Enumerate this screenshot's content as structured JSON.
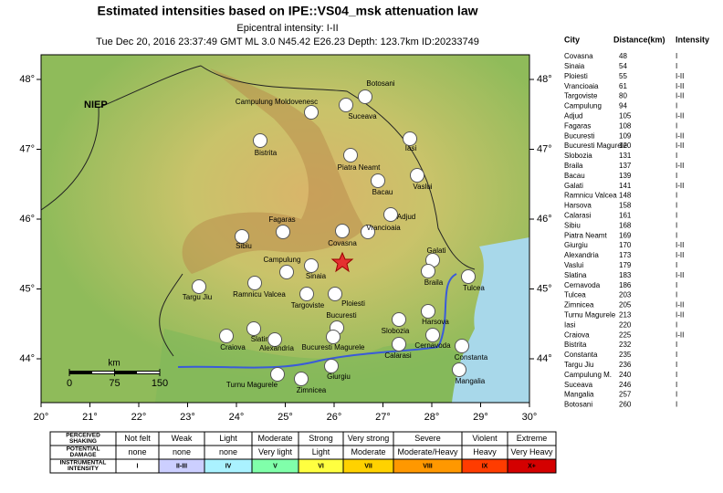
{
  "header": {
    "title": "Estimated intensities based on IPE::VS04_msk attenuation law",
    "epicentral": "Epicentral intensity: I-II",
    "details": "Tue Dec 20, 2016 23:37:49 GMT ML 3.0 N45.42 E26.23 Depth: 123.7km ID:20233749"
  },
  "map": {
    "label": "NIEP",
    "lon_ticks": [
      {
        "value": 20,
        "label": "20°"
      },
      {
        "value": 21,
        "label": "21°"
      },
      {
        "value": 22,
        "label": "22°"
      },
      {
        "value": 23,
        "label": "23°"
      },
      {
        "value": 24,
        "label": "24°"
      },
      {
        "value": 25,
        "label": "25°"
      },
      {
        "value": 26,
        "label": "26°"
      },
      {
        "value": 27,
        "label": "27°"
      },
      {
        "value": 28,
        "label": "28°"
      },
      {
        "value": 29,
        "label": "29°"
      },
      {
        "value": 30,
        "label": "30°"
      }
    ],
    "lat_ticks": [
      {
        "value": 44,
        "label": "44°"
      },
      {
        "value": 45,
        "label": "45°"
      },
      {
        "value": 46,
        "label": "46°"
      },
      {
        "value": 47,
        "label": "47°"
      },
      {
        "value": 48,
        "label": "48°"
      }
    ],
    "scale": {
      "unit": "km",
      "ticks": [
        0,
        75,
        150
      ]
    },
    "cities": [
      "Campulung Moldovenesc",
      "Suceava",
      "Botosani",
      "Iasi",
      "Bistrita",
      "Piatra Neamt",
      "Bacau",
      "Vaslui",
      "Adjud",
      "Fagaras",
      "Covasna",
      "Vrancioaia",
      "Sibiu",
      "Campulung",
      "Sinaia",
      "Galati",
      "Braila",
      "Tulcea",
      "Targu Jiu",
      "Ramnicu Valcea",
      "Targoviste",
      "Ploiesti",
      "Bucuresti",
      "Slobozia",
      "Harsova",
      "Slatina",
      "Craiova",
      "Alexandria",
      "Bucuresti Magurele",
      "Calarasi",
      "Cernavoda",
      "Constanta",
      "Turnu Magurele",
      "Zimnicea",
      "Giurgiu",
      "Mangalia"
    ]
  },
  "table": {
    "columns": [
      "City",
      "Distance(km)",
      "Intensity"
    ],
    "rows": [
      [
        "Covasna",
        48,
        "I"
      ],
      [
        "Sinaia",
        54,
        "I"
      ],
      [
        "Ploiesti",
        55,
        "I-II"
      ],
      [
        "Vrancioaia",
        61,
        "I-II"
      ],
      [
        "Targoviste",
        80,
        "I-II"
      ],
      [
        "Campulung",
        94,
        "I"
      ],
      [
        "Adjud",
        105,
        "I-II"
      ],
      [
        "Fagaras",
        108,
        "I"
      ],
      [
        "Bucuresti",
        109,
        "I-II"
      ],
      [
        "Bucuresti Magurele",
        120,
        "I-II"
      ],
      [
        "Slobozia",
        131,
        "I"
      ],
      [
        "Braila",
        137,
        "I-II"
      ],
      [
        "Bacau",
        139,
        "I"
      ],
      [
        "Galati",
        141,
        "I-II"
      ],
      [
        "Ramnicu Valcea",
        148,
        "I"
      ],
      [
        "Harsova",
        158,
        "I"
      ],
      [
        "Calarasi",
        161,
        "I"
      ],
      [
        "Sibiu",
        168,
        "I"
      ],
      [
        "Piatra Neamt",
        169,
        "I"
      ],
      [
        "Giurgiu",
        170,
        "I-II"
      ],
      [
        "Alexandria",
        173,
        "I-II"
      ],
      [
        "Vaslui",
        179,
        "I"
      ],
      [
        "Slatina",
        183,
        "I-II"
      ],
      [
        "Cernavoda",
        186,
        "I"
      ],
      [
        "Tulcea",
        203,
        "I"
      ],
      [
        "Zimnicea",
        205,
        "I-II"
      ],
      [
        "Turnu Magurele",
        213,
        "I-II"
      ],
      [
        "Iasi",
        220,
        "I"
      ],
      [
        "Craiova",
        225,
        "I-II"
      ],
      [
        "Bistrita",
        232,
        "I"
      ],
      [
        "Constanta",
        235,
        "I"
      ],
      [
        "Targu Jiu",
        236,
        "I"
      ],
      [
        "Campulung M.",
        240,
        "I"
      ],
      [
        "Suceava",
        246,
        "I"
      ],
      [
        "Mangalia",
        257,
        "I"
      ],
      [
        "Botosani",
        260,
        "I"
      ]
    ]
  },
  "legend": {
    "rows": [
      {
        "label": [
          "PERCEIVED",
          "SHAKING"
        ],
        "cells": [
          "Not felt",
          "Weak",
          "Light",
          "Moderate",
          "Strong",
          "Very strong",
          "Severe",
          "Violent",
          "Extreme"
        ]
      },
      {
        "label": [
          "POTENTIAL",
          "DAMAGE"
        ],
        "cells": [
          "none",
          "none",
          "none",
          "Very light",
          "Light",
          "Moderate",
          "Moderate/Heavy",
          "Heavy",
          "Very Heavy"
        ]
      },
      {
        "label": [
          "INSTRUMENTAL",
          "INTENSITY"
        ],
        "cells": [
          "I",
          "II-III",
          "IV",
          "V",
          "VI",
          "VII",
          "VIII",
          "IX",
          "X+"
        ]
      }
    ]
  }
}
